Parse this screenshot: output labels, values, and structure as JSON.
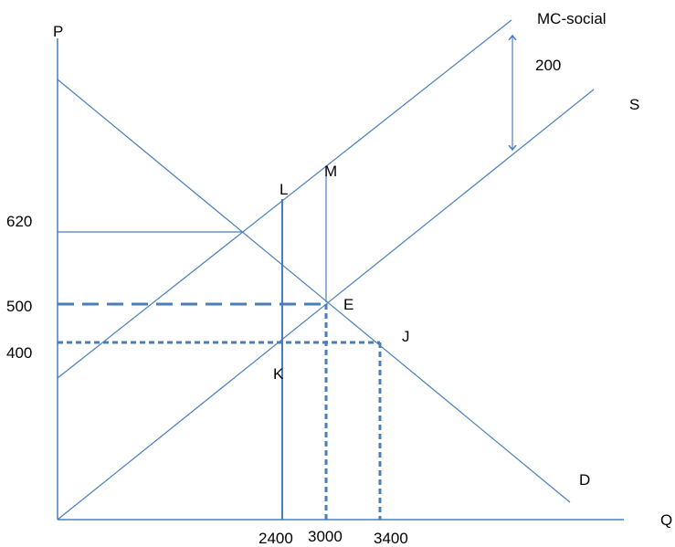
{
  "axes": {
    "y_label": "P",
    "x_label": "Q"
  },
  "curves": {
    "mc_social": "MC-social",
    "supply": "S",
    "demand": "D"
  },
  "gap_label": "200",
  "points": {
    "L": "L",
    "M": "M",
    "E": "E",
    "J": "J",
    "K": "K"
  },
  "price_ticks": [
    "620",
    "500",
    "400"
  ],
  "quantity_ticks": [
    "2400",
    "3000",
    "3400"
  ],
  "colors": {
    "line": "#4a7ebb",
    "text": "#000000"
  }
}
